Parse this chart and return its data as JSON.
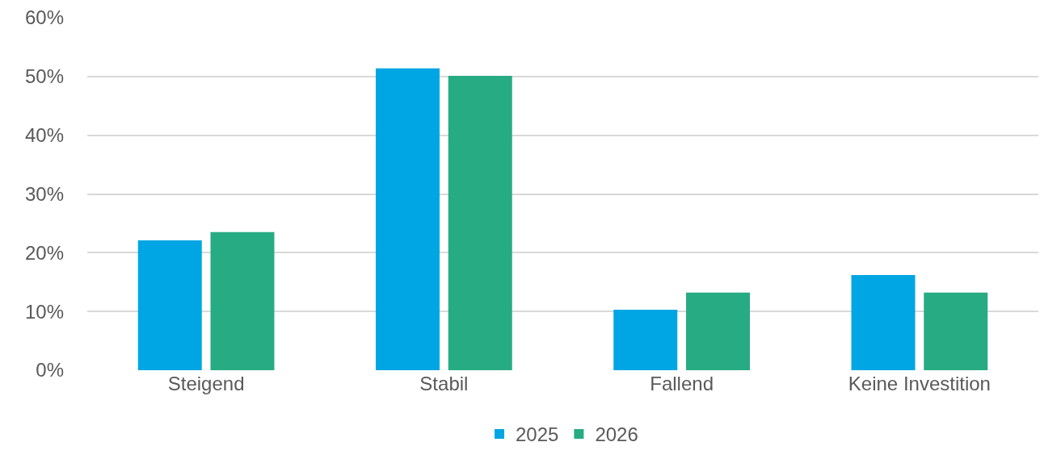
{
  "chart_data": {
    "type": "bar",
    "categories": [
      "Steigend",
      "Stabil",
      "Fallend",
      "Keine Investition"
    ],
    "series": [
      {
        "name": "2025",
        "color": "#00a6e3",
        "values": [
          22.1,
          51.4,
          10.3,
          16.2
        ]
      },
      {
        "name": "2026",
        "color": "#27ab83",
        "values": [
          23.5,
          50.1,
          13.2,
          13.2
        ]
      }
    ],
    "ylim": [
      0,
      60
    ],
    "yticks": [
      {
        "value": 0,
        "label": "0%"
      },
      {
        "value": 10,
        "label": "10%"
      },
      {
        "value": 20,
        "label": "20%"
      },
      {
        "value": 30,
        "label": "30%"
      },
      {
        "value": 40,
        "label": "40%"
      },
      {
        "value": 50,
        "label": "50%"
      },
      {
        "value": 60,
        "label": "60%"
      }
    ],
    "grid": "y",
    "legend": "bottom"
  }
}
